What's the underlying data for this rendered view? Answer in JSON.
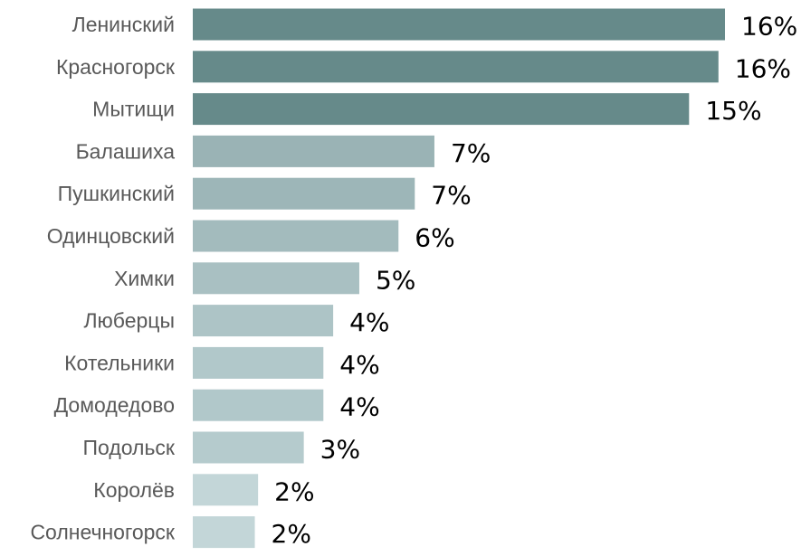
{
  "chart_data": {
    "type": "bar",
    "orientation": "horizontal",
    "categories": [
      "Ленинский",
      "Красногорск",
      "Мытищи",
      "Балашиха",
      "Пушкинский",
      "Одинцовский",
      "Химки",
      "Люберцы",
      "Котельники",
      "Домодедово",
      "Подольск",
      "Королёв",
      "Солнечногорск"
    ],
    "values": [
      16.3,
      16.1,
      15.2,
      7.4,
      6.8,
      6.3,
      5.1,
      4.3,
      4.0,
      4.0,
      3.4,
      2.0,
      1.9
    ],
    "data_labels": [
      "16%",
      "16%",
      "15%",
      "7%",
      "7%",
      "6%",
      "5%",
      "4%",
      "4%",
      "4%",
      "3%",
      "2%",
      "2%"
    ],
    "bar_colors": [
      "#668a8a",
      "#668a8a",
      "#668a8a",
      "#9ab3b5",
      "#9db6b8",
      "#a3bbbd",
      "#a9c0c2",
      "#adc4c6",
      "#b1c8ca",
      "#b1c8ca",
      "#b5cbcd",
      "#c3d6d8",
      "#c3d6d8"
    ],
    "title": "",
    "xlabel": "",
    "ylabel": "",
    "xlim": [
      0,
      16.3
    ],
    "grid": false,
    "legend": "none"
  }
}
